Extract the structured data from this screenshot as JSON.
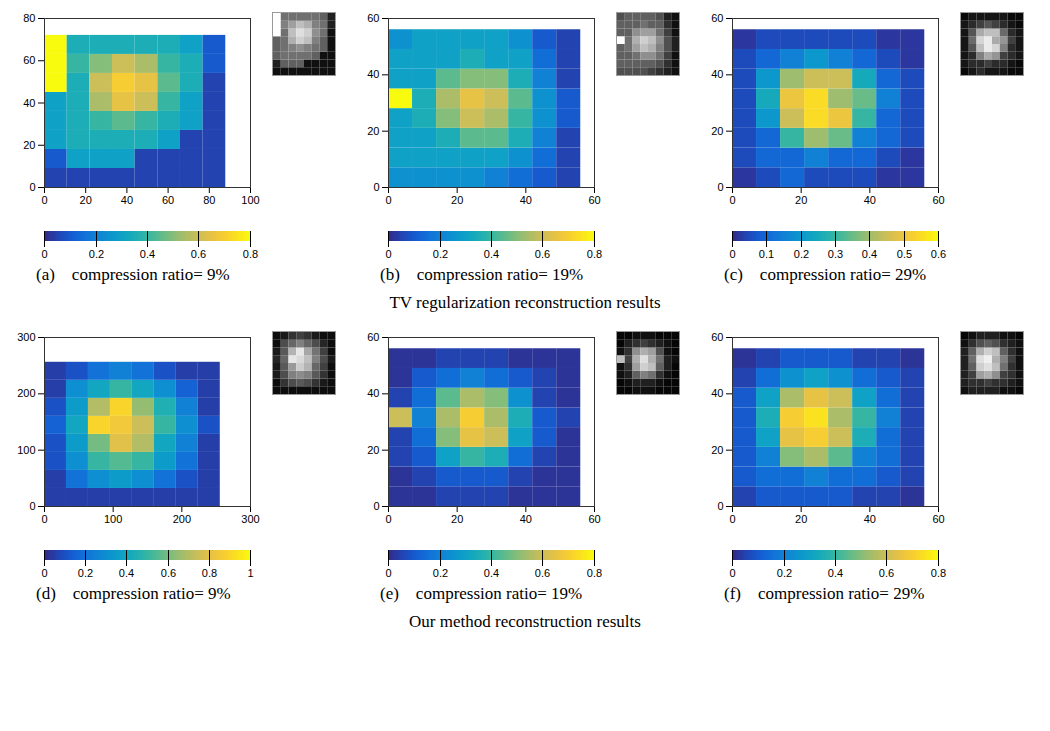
{
  "chart_data": [
    {
      "type": "surface",
      "panel": "(a)",
      "title": "compression ratio= 9%",
      "xlim": [
        0,
        100
      ],
      "xticks": [
        0,
        20,
        40,
        60,
        80,
        100
      ],
      "ylim": [
        0,
        80
      ],
      "yticks": [
        0,
        20,
        40,
        60,
        80
      ],
      "zlim": [
        0,
        0.8
      ],
      "zticks": [
        0,
        0.2,
        0.4,
        0.6,
        0.8
      ],
      "x_edges": [
        0,
        11,
        22,
        33,
        44,
        55,
        66,
        77,
        88
      ],
      "y_edges": [
        0,
        9,
        18,
        27,
        36,
        45,
        54,
        63,
        72
      ],
      "z": [
        [
          0.05,
          0.05,
          0.05,
          0.05,
          0.05,
          0.05,
          0.05,
          0.05
        ],
        [
          0.1,
          0.3,
          0.3,
          0.3,
          0.05,
          0.05,
          0.05,
          0.05
        ],
        [
          0.3,
          0.35,
          0.35,
          0.35,
          0.35,
          0.3,
          0.05,
          0.05
        ],
        [
          0.3,
          0.35,
          0.4,
          0.45,
          0.4,
          0.35,
          0.3,
          0.05
        ],
        [
          0.3,
          0.35,
          0.55,
          0.65,
          0.6,
          0.4,
          0.3,
          0.05
        ],
        [
          0.8,
          0.35,
          0.6,
          0.7,
          0.65,
          0.45,
          0.35,
          0.05
        ],
        [
          0.8,
          0.4,
          0.5,
          0.6,
          0.55,
          0.4,
          0.35,
          0.1
        ],
        [
          0.8,
          0.35,
          0.35,
          0.35,
          0.35,
          0.35,
          0.3,
          0.1
        ]
      ]
    },
    {
      "type": "surface",
      "panel": "(b)",
      "title": "compression ratio= 19%",
      "xlim": [
        0,
        60
      ],
      "xticks": [
        0,
        20,
        40,
        60
      ],
      "ylim": [
        0,
        60
      ],
      "yticks": [
        0,
        20,
        40,
        60
      ],
      "zlim": [
        0,
        0.8
      ],
      "zticks": [
        0,
        0.2,
        0.4,
        0.6,
        0.8
      ],
      "x_edges": [
        0,
        7,
        14,
        21,
        28,
        35,
        42,
        49,
        56
      ],
      "y_edges": [
        0,
        7,
        14,
        21,
        28,
        35,
        42,
        49,
        56
      ],
      "z": [
        [
          0.25,
          0.25,
          0.25,
          0.25,
          0.2,
          0.15,
          0.1,
          0.05
        ],
        [
          0.3,
          0.3,
          0.3,
          0.3,
          0.3,
          0.25,
          0.15,
          0.05
        ],
        [
          0.3,
          0.3,
          0.35,
          0.45,
          0.45,
          0.35,
          0.2,
          0.05
        ],
        [
          0.3,
          0.35,
          0.5,
          0.6,
          0.55,
          0.4,
          0.25,
          0.1
        ],
        [
          0.8,
          0.35,
          0.55,
          0.65,
          0.6,
          0.45,
          0.25,
          0.1
        ],
        [
          0.3,
          0.3,
          0.45,
          0.5,
          0.5,
          0.35,
          0.2,
          0.05
        ],
        [
          0.3,
          0.3,
          0.3,
          0.35,
          0.3,
          0.3,
          0.15,
          0.05
        ],
        [
          0.25,
          0.3,
          0.3,
          0.3,
          0.3,
          0.25,
          0.1,
          0.05
        ]
      ]
    },
    {
      "type": "surface",
      "panel": "(c)",
      "title": "compression ratio= 29%",
      "xlim": [
        0,
        60
      ],
      "xticks": [
        0,
        20,
        40,
        60
      ],
      "ylim": [
        0,
        60
      ],
      "yticks": [
        0,
        20,
        40,
        60
      ],
      "zlim": [
        0,
        0.6
      ],
      "zticks": [
        0,
        0.1,
        0.2,
        0.3,
        0.4,
        0.5,
        0.6
      ],
      "x_edges": [
        0,
        7,
        14,
        21,
        28,
        35,
        42,
        49,
        56
      ],
      "y_edges": [
        0,
        7,
        14,
        21,
        28,
        35,
        42,
        49,
        56
      ],
      "z": [
        [
          0.02,
          0.05,
          0.1,
          0.05,
          0.05,
          0.05,
          0.02,
          0.02
        ],
        [
          0.05,
          0.1,
          0.1,
          0.15,
          0.1,
          0.1,
          0.05,
          0.02
        ],
        [
          0.05,
          0.1,
          0.3,
          0.4,
          0.35,
          0.15,
          0.1,
          0.05
        ],
        [
          0.05,
          0.2,
          0.45,
          0.55,
          0.5,
          0.3,
          0.1,
          0.05
        ],
        [
          0.05,
          0.25,
          0.5,
          0.55,
          0.4,
          0.35,
          0.15,
          0.05
        ],
        [
          0.05,
          0.2,
          0.4,
          0.45,
          0.45,
          0.25,
          0.1,
          0.05
        ],
        [
          0.05,
          0.1,
          0.15,
          0.2,
          0.15,
          0.1,
          0.05,
          0.02
        ],
        [
          0.02,
          0.05,
          0.05,
          0.05,
          0.05,
          0.05,
          0.02,
          0.02
        ]
      ]
    },
    {
      "type": "surface",
      "panel": "(d)",
      "title": "compression ratio= 9%",
      "xlim": [
        0,
        300
      ],
      "xticks": [
        0,
        100,
        200,
        300
      ],
      "ylim": [
        0,
        300
      ],
      "yticks": [
        0,
        100,
        200,
        300
      ],
      "zlim": [
        0,
        1
      ],
      "zticks": [
        0,
        0.2,
        0.4,
        0.6,
        0.8,
        1
      ],
      "x_edges": [
        0,
        32,
        64,
        96,
        128,
        160,
        192,
        224,
        256
      ],
      "y_edges": [
        0,
        32,
        64,
        96,
        128,
        160,
        192,
        224,
        256
      ],
      "z": [
        [
          0.05,
          0.05,
          0.05,
          0.05,
          0.05,
          0.05,
          0.05,
          0.05
        ],
        [
          0.05,
          0.2,
          0.3,
          0.35,
          0.3,
          0.2,
          0.1,
          0.05
        ],
        [
          0.1,
          0.3,
          0.5,
          0.55,
          0.5,
          0.35,
          0.2,
          0.05
        ],
        [
          0.1,
          0.35,
          0.6,
          0.8,
          0.7,
          0.4,
          0.25,
          0.05
        ],
        [
          0.15,
          0.4,
          0.9,
          0.85,
          0.75,
          0.5,
          0.3,
          0.1
        ],
        [
          0.1,
          0.35,
          0.7,
          0.9,
          0.65,
          0.45,
          0.25,
          0.05
        ],
        [
          0.05,
          0.3,
          0.4,
          0.5,
          0.4,
          0.3,
          0.15,
          0.05
        ],
        [
          0.05,
          0.1,
          0.2,
          0.25,
          0.2,
          0.1,
          0.05,
          0.05
        ]
      ]
    },
    {
      "type": "surface",
      "panel": "(e)",
      "title": "compression ratio= 19%",
      "xlim": [
        0,
        60
      ],
      "xticks": [
        0,
        20,
        40,
        60
      ],
      "ylim": [
        0,
        60
      ],
      "yticks": [
        0,
        20,
        40,
        60
      ],
      "zlim": [
        0,
        0.8
      ],
      "zticks": [
        0,
        0.2,
        0.4,
        0.6,
        0.8
      ],
      "x_edges": [
        0,
        7,
        14,
        21,
        28,
        35,
        42,
        49,
        56
      ],
      "y_edges": [
        0,
        7,
        14,
        21,
        28,
        35,
        42,
        49,
        56
      ],
      "z": [
        [
          0.02,
          0.02,
          0.05,
          0.05,
          0.05,
          0.02,
          0.02,
          0.02
        ],
        [
          0.02,
          0.05,
          0.1,
          0.1,
          0.1,
          0.05,
          0.02,
          0.02
        ],
        [
          0.05,
          0.1,
          0.3,
          0.4,
          0.35,
          0.15,
          0.05,
          0.02
        ],
        [
          0.05,
          0.15,
          0.5,
          0.65,
          0.6,
          0.3,
          0.1,
          0.02
        ],
        [
          0.6,
          0.2,
          0.55,
          0.7,
          0.55,
          0.35,
          0.1,
          0.05
        ],
        [
          0.05,
          0.15,
          0.45,
          0.55,
          0.5,
          0.25,
          0.05,
          0.02
        ],
        [
          0.02,
          0.1,
          0.15,
          0.2,
          0.15,
          0.1,
          0.05,
          0.02
        ],
        [
          0.02,
          0.02,
          0.05,
          0.05,
          0.05,
          0.02,
          0.02,
          0.02
        ]
      ]
    },
    {
      "type": "surface",
      "panel": "(f)",
      "title": "compression ratio= 29%",
      "xlim": [
        0,
        60
      ],
      "xticks": [
        0,
        20,
        40,
        60
      ],
      "ylim": [
        0,
        60
      ],
      "yticks": [
        0,
        20,
        40,
        60
      ],
      "zlim": [
        0,
        0.8
      ],
      "zticks": [
        0,
        0.2,
        0.4,
        0.6,
        0.8
      ],
      "x_edges": [
        0,
        7,
        14,
        21,
        28,
        35,
        42,
        49,
        56
      ],
      "y_edges": [
        0,
        7,
        14,
        21,
        28,
        35,
        42,
        49,
        56
      ],
      "z": [
        [
          0.05,
          0.1,
          0.1,
          0.1,
          0.1,
          0.05,
          0.05,
          0.02
        ],
        [
          0.1,
          0.15,
          0.15,
          0.2,
          0.15,
          0.15,
          0.1,
          0.05
        ],
        [
          0.1,
          0.2,
          0.5,
          0.55,
          0.45,
          0.2,
          0.15,
          0.05
        ],
        [
          0.1,
          0.3,
          0.65,
          0.7,
          0.6,
          0.35,
          0.15,
          0.05
        ],
        [
          0.1,
          0.35,
          0.7,
          0.75,
          0.55,
          0.4,
          0.2,
          0.05
        ],
        [
          0.1,
          0.3,
          0.55,
          0.65,
          0.6,
          0.3,
          0.15,
          0.05
        ],
        [
          0.05,
          0.15,
          0.25,
          0.3,
          0.25,
          0.15,
          0.1,
          0.05
        ],
        [
          0.02,
          0.05,
          0.1,
          0.1,
          0.1,
          0.05,
          0.05,
          0.02
        ]
      ]
    }
  ],
  "captions": [
    "TV regularization reconstruction results",
    "Our method reconstruction results"
  ]
}
